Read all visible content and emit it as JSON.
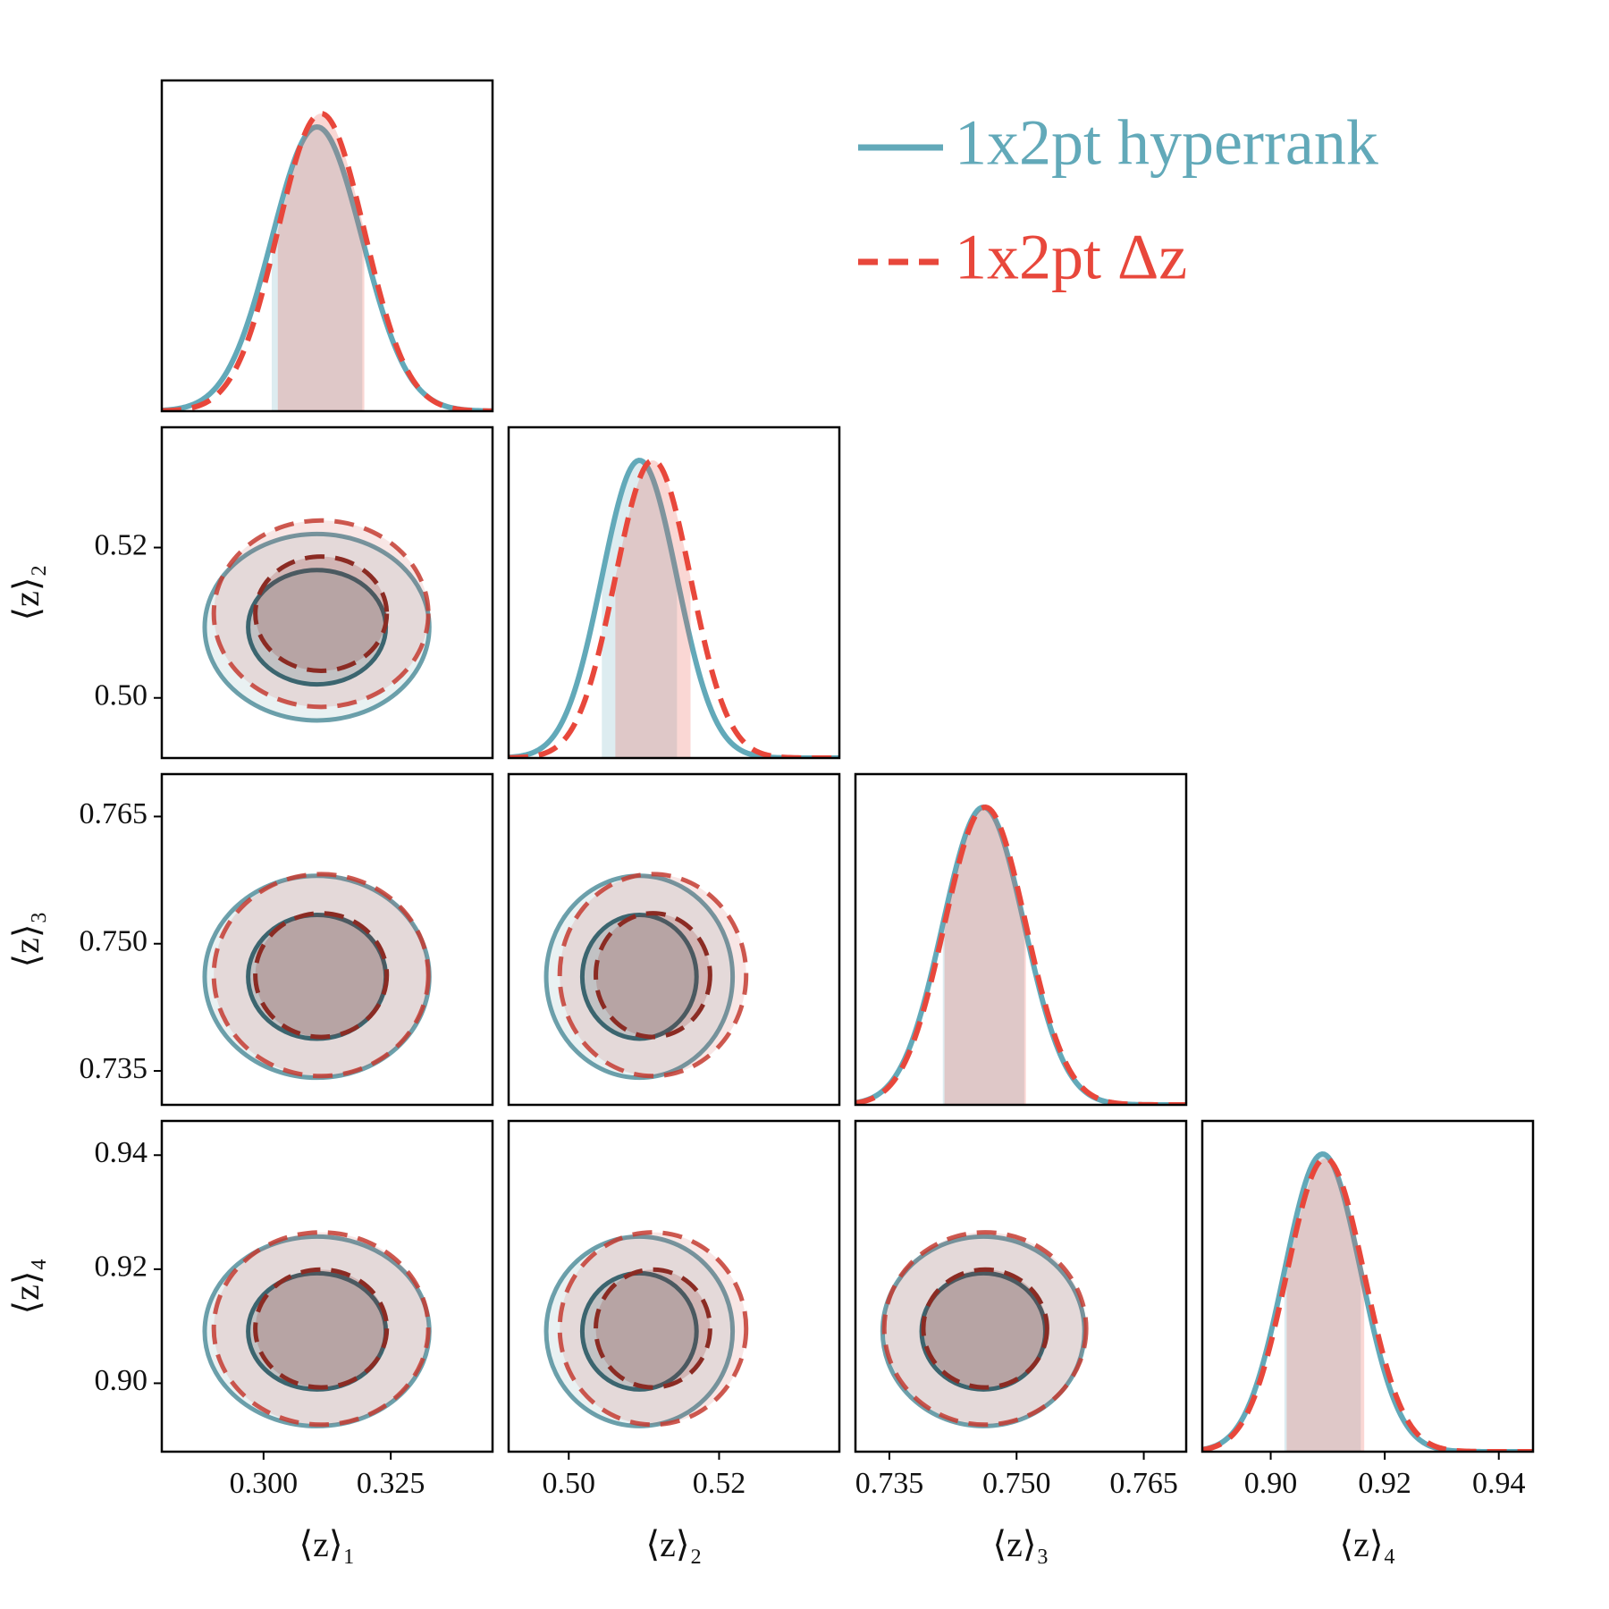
{
  "chart_data": {
    "type": "corner",
    "parameters": [
      {
        "label": "⟨z⟩₁",
        "lim": [
          0.28,
          0.345
        ],
        "ticks": [
          {
            "value": 0.3,
            "label": "0.300"
          },
          0.325
        ]
      },
      {
        "label": "⟨z⟩₂",
        "lim": [
          0.492,
          0.536
        ],
        "ticks": [
          {
            "value": 0.5,
            "label": "0.50"
          },
          0.52
        ]
      },
      {
        "label": "⟨z⟩₃",
        "lim": [
          0.731,
          0.77
        ],
        "ticks": [
          0.735,
          {
            "value": 0.75,
            "label": "0.750"
          },
          0.765
        ]
      },
      {
        "label": "⟨z⟩₄",
        "lim": [
          0.888,
          0.946
        ],
        "ticks": [
          {
            "value": 0.9,
            "label": "0.90"
          },
          0.92,
          0.94
        ]
      }
    ],
    "series": [
      {
        "name": "1x2pt hyperrank",
        "color": "#62a9b9",
        "linestyle": "solid",
        "mean": [
          0.3105,
          0.5094,
          0.7461,
          0.9091
        ],
        "sigma": [
          0.0089,
          0.005,
          0.0048,
          0.0067
        ]
      },
      {
        "name": "1x2pt Δz",
        "color": "#e8473b",
        "linestyle": "dashed",
        "mean": [
          0.3113,
          0.5112,
          0.7463,
          0.9096
        ],
        "sigma": [
          0.0085,
          0.005,
          0.0048,
          0.0068
        ]
      }
    ],
    "legend": "upper right"
  }
}
